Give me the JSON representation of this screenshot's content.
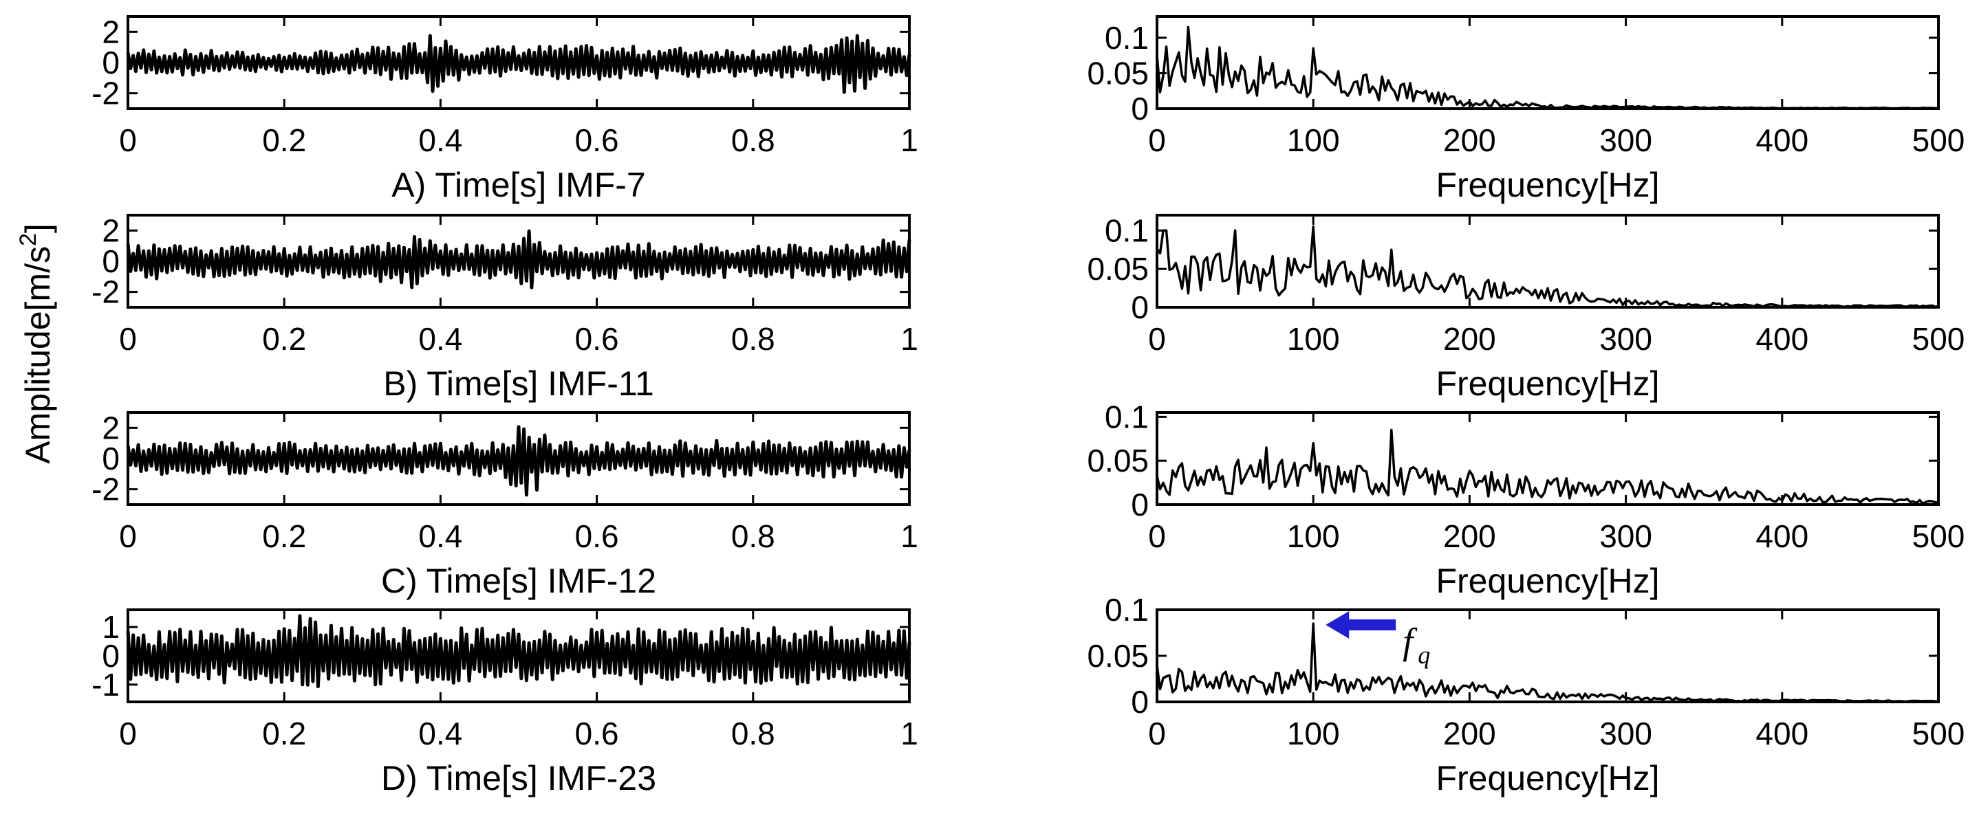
{
  "figure": {
    "shared_ylabel": "Amplitude[m/s",
    "shared_ylabel_sup": "2",
    "shared_ylabel_close": "]"
  },
  "chart_data": [
    {
      "type": "line",
      "title": "",
      "xlabel": "A) Time[s] IMF-7",
      "xlim": [
        0,
        1
      ],
      "ylim": [
        -3,
        3
      ],
      "xticks": [
        "0",
        "0.2",
        "0.4",
        "0.6",
        "0.8",
        "1"
      ],
      "yticks": [
        "2",
        "0",
        "-2"
      ],
      "ytick_values": [
        2,
        0,
        -2
      ],
      "description_values": {
        "typical_amplitude": 0.9,
        "peak_events": [
          [
            0.4,
            2.3
          ],
          [
            0.93,
            2.5
          ],
          [
            0.37,
            -2.2
          ],
          [
            0.4,
            -2.6
          ],
          [
            0.93,
            -2.8
          ]
        ]
      },
      "series": [
        {
          "seed": 7,
          "n": 300,
          "envelope": [
            [
              0.0,
              0.9
            ],
            [
              0.1,
              0.8
            ],
            [
              0.2,
              0.6
            ],
            [
              0.3,
              0.9
            ],
            [
              0.37,
              1.4
            ],
            [
              0.4,
              2.4
            ],
            [
              0.43,
              1.0
            ],
            [
              0.5,
              1.1
            ],
            [
              0.6,
              1.1
            ],
            [
              0.7,
              1.0
            ],
            [
              0.8,
              0.9
            ],
            [
              0.9,
              1.2
            ],
            [
              0.93,
              2.6
            ],
            [
              0.96,
              1.0
            ],
            [
              1.0,
              0.9
            ]
          ]
        }
      ]
    },
    {
      "type": "line",
      "title": "",
      "xlabel": "Frequency[Hz]",
      "xlim": [
        0,
        500
      ],
      "ylim": [
        0,
        0.13
      ],
      "xticks": [
        "0",
        "100",
        "200",
        "300",
        "400",
        "500"
      ],
      "yticks": [
        "0.1",
        "0.05",
        "0"
      ],
      "ytick_values": [
        0.1,
        0.05,
        0
      ],
      "series": [
        {
          "seed": 17,
          "n": 250,
          "envelope": [
            [
              0,
              0.07
            ],
            [
              20,
              0.11
            ],
            [
              50,
              0.07
            ],
            [
              100,
              0.05
            ],
            [
              150,
              0.04
            ],
            [
              180,
              0.02
            ],
            [
              220,
              0.01
            ],
            [
              260,
              0.004
            ],
            [
              310,
              0.003
            ],
            [
              360,
              0.002
            ],
            [
              400,
              0.001
            ],
            [
              500,
              0.001
            ]
          ],
          "peaks": [
            [
              20,
              0.115
            ],
            [
              100,
              0.085
            ]
          ]
        }
      ]
    },
    {
      "type": "line",
      "title": "",
      "xlabel": "B) Time[s] IMF-11",
      "xlim": [
        0,
        1
      ],
      "ylim": [
        -3,
        3
      ],
      "xticks": [
        "0",
        "0.2",
        "0.4",
        "0.6",
        "0.8",
        "1"
      ],
      "yticks": [
        "2",
        "0",
        "-2"
      ],
      "ytick_values": [
        2,
        0,
        -2
      ],
      "series": [
        {
          "seed": 11,
          "n": 300,
          "envelope": [
            [
              0.0,
              1.2
            ],
            [
              0.1,
              1.1
            ],
            [
              0.2,
              1.0
            ],
            [
              0.3,
              1.1
            ],
            [
              0.36,
              1.8
            ],
            [
              0.4,
              1.1
            ],
            [
              0.5,
              1.2
            ],
            [
              0.51,
              2.6
            ],
            [
              0.53,
              1.2
            ],
            [
              0.6,
              1.1
            ],
            [
              0.7,
              1.2
            ],
            [
              0.8,
              1.0
            ],
            [
              0.9,
              1.1
            ],
            [
              1.0,
              1.6
            ]
          ]
        }
      ]
    },
    {
      "type": "line",
      "title": "",
      "xlabel": "Frequency[Hz]",
      "xlim": [
        0,
        500
      ],
      "ylim": [
        0,
        0.12
      ],
      "xticks": [
        "0",
        "100",
        "200",
        "300",
        "400",
        "500"
      ],
      "yticks": [
        "0.1",
        "0.05",
        "0"
      ],
      "ytick_values": [
        0.1,
        0.05,
        0
      ],
      "series": [
        {
          "seed": 23,
          "n": 250,
          "envelope": [
            [
              0,
              0.07
            ],
            [
              50,
              0.06
            ],
            [
              100,
              0.06
            ],
            [
              150,
              0.05
            ],
            [
              200,
              0.035
            ],
            [
              230,
              0.03
            ],
            [
              260,
              0.02
            ],
            [
              300,
              0.01
            ],
            [
              350,
              0.006
            ],
            [
              400,
              0.003
            ],
            [
              500,
              0.002
            ]
          ],
          "peaks": [
            [
              5,
              0.1
            ],
            [
              50,
              0.1
            ],
            [
              100,
              0.105
            ],
            [
              150,
              0.075
            ]
          ]
        }
      ]
    },
    {
      "type": "line",
      "title": "",
      "xlabel": "C) Time[s] IMF-12",
      "xlim": [
        0,
        1
      ],
      "ylim": [
        -3,
        3
      ],
      "xticks": [
        "0",
        "0.2",
        "0.4",
        "0.6",
        "0.8",
        "1"
      ],
      "yticks": [
        "2",
        "0",
        "-2"
      ],
      "ytick_values": [
        2,
        0,
        -2
      ],
      "series": [
        {
          "seed": 12,
          "n": 300,
          "envelope": [
            [
              0.0,
              1.0
            ],
            [
              0.2,
              1.1
            ],
            [
              0.4,
              1.0
            ],
            [
              0.48,
              1.2
            ],
            [
              0.51,
              2.8
            ],
            [
              0.54,
              1.2
            ],
            [
              0.6,
              1.1
            ],
            [
              0.8,
              1.2
            ],
            [
              1.0,
              1.2
            ]
          ]
        }
      ]
    },
    {
      "type": "line",
      "title": "",
      "xlabel": "Frequency[Hz]",
      "xlim": [
        0,
        500
      ],
      "ylim": [
        0,
        0.105
      ],
      "xticks": [
        "0",
        "100",
        "200",
        "300",
        "400",
        "500"
      ],
      "yticks": [
        "0.1",
        "0.05",
        "0"
      ],
      "ytick_values": [
        0.1,
        0.05,
        0
      ],
      "series": [
        {
          "seed": 31,
          "n": 250,
          "envelope": [
            [
              0,
              0.04
            ],
            [
              50,
              0.045
            ],
            [
              100,
              0.045
            ],
            [
              150,
              0.04
            ],
            [
              200,
              0.035
            ],
            [
              250,
              0.03
            ],
            [
              300,
              0.025
            ],
            [
              350,
              0.02
            ],
            [
              400,
              0.012
            ],
            [
              450,
              0.008
            ],
            [
              500,
              0.004
            ]
          ],
          "peaks": [
            [
              70,
              0.065
            ],
            [
              100,
              0.07
            ],
            [
              150,
              0.085
            ]
          ]
        }
      ]
    },
    {
      "type": "line",
      "title": "",
      "xlabel": "D) Time[s] IMF-23",
      "xlim": [
        0,
        1
      ],
      "ylim": [
        -1.6,
        1.6
      ],
      "xticks": [
        "0",
        "0.2",
        "0.4",
        "0.6",
        "0.8",
        "1"
      ],
      "yticks": [
        "1",
        "0",
        "-1"
      ],
      "ytick_values": [
        1,
        0,
        -1
      ],
      "series": [
        {
          "seed": 23,
          "n": 300,
          "envelope": [
            [
              0.0,
              0.9
            ],
            [
              0.2,
              1.0
            ],
            [
              0.22,
              1.4
            ],
            [
              0.3,
              1.0
            ],
            [
              0.5,
              1.0
            ],
            [
              0.7,
              1.0
            ],
            [
              0.9,
              1.0
            ],
            [
              1.0,
              0.9
            ]
          ]
        }
      ]
    },
    {
      "type": "line",
      "title": "",
      "xlabel": "Frequency[Hz]",
      "xlim": [
        0,
        500
      ],
      "ylim": [
        0,
        0.1
      ],
      "xticks": [
        "0",
        "100",
        "200",
        "300",
        "400",
        "500"
      ],
      "yticks": [
        "0.1",
        "0.05",
        "0"
      ],
      "ytick_values": [
        0.1,
        0.05,
        0
      ],
      "series": [
        {
          "seed": 41,
          "n": 250,
          "envelope": [
            [
              0,
              0.035
            ],
            [
              50,
              0.03
            ],
            [
              100,
              0.03
            ],
            [
              150,
              0.025
            ],
            [
              200,
              0.02
            ],
            [
              250,
              0.012
            ],
            [
              300,
              0.006
            ],
            [
              350,
              0.003
            ],
            [
              400,
              0.002
            ],
            [
              500,
              0.001
            ]
          ],
          "peaks": [
            [
              100,
              0.085
            ]
          ]
        }
      ],
      "annotation": {
        "symbol": "f",
        "subscript": "q",
        "arrow_color": "#2020d0",
        "points_to_hz": 100
      }
    }
  ]
}
